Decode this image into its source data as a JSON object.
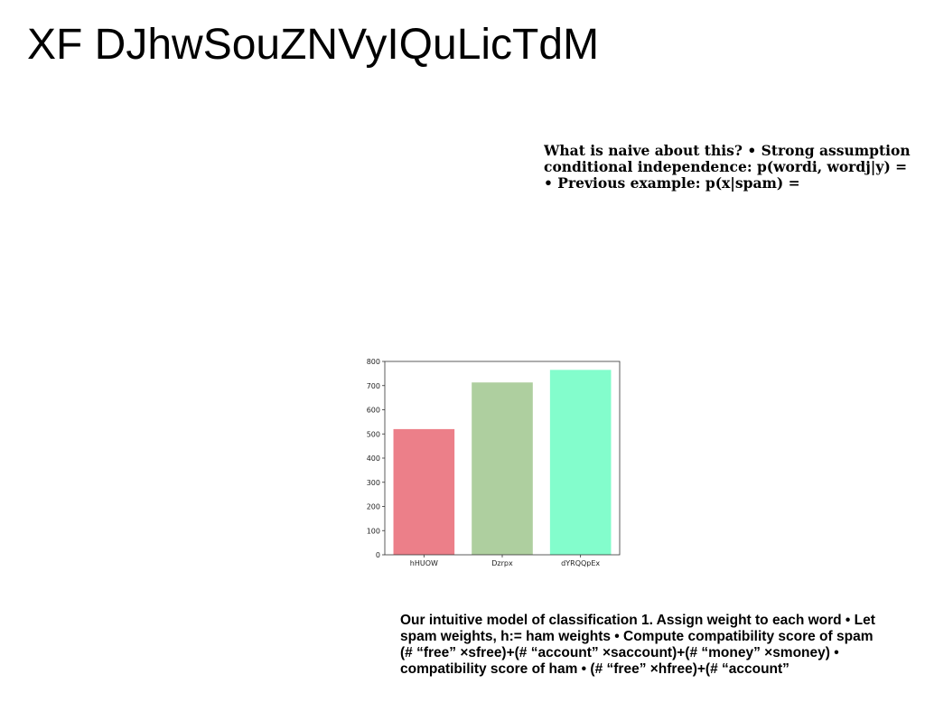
{
  "page": {
    "title": "XF DJhwSouZNVyIQuLicTdM"
  },
  "text_top": {
    "lines": [
      "What is naive about this? • Strong assumption",
      "conditional independence: p(wordi, wordj|y) =",
      "• Previous example: p(x|spam) ="
    ]
  },
  "text_bottom": {
    "lines": [
      "Our intuitive model of classification 1. Assign weight to each word • Let",
      "spam weights, h:= ham weights • Compute compatibility score of spam",
      "(# “free” ×sfree)+(# “account” ×saccount)+(# “money” ×smoney) •",
      "compatibility score of ham • (# “free” ×hfree)+(# “account”"
    ]
  },
  "chart_data": {
    "type": "bar",
    "categories": [
      "hHUOW",
      "Dzrpx",
      "dYRQQpEx"
    ],
    "values": [
      520,
      713,
      765
    ],
    "colors": [
      "#ec7f89",
      "#aecf9f",
      "#83fdcc"
    ],
    "ylim": [
      0,
      800
    ],
    "yticks": [
      0,
      100,
      200,
      300,
      400,
      500,
      600,
      700,
      800
    ],
    "title": "",
    "xlabel": "",
    "ylabel": "",
    "grid": false
  }
}
